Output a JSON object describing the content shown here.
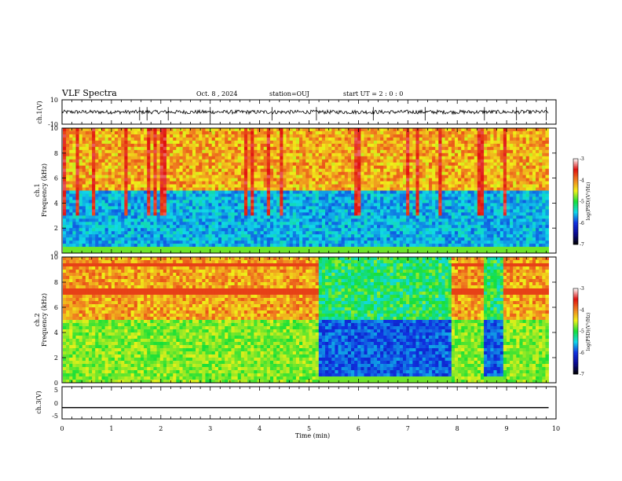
{
  "header": {
    "title": "VLF Spectra",
    "date": "Oct. 8 , 2024",
    "station": "station=OUJ",
    "start_ut": "start UT =  2 : 0 : 0"
  },
  "colors": {
    "waveform": "#000000",
    "colormap": [
      "#000000",
      "#0a0a90",
      "#1030e0",
      "#10d8e8",
      "#18e038",
      "#f0f018",
      "#f08020",
      "#e01010",
      "#ffffff"
    ]
  },
  "chart_data": [
    {
      "type": "line",
      "name": "ch1-waveform",
      "ylabel": "ch.1(V)",
      "ylim": [
        -10,
        10
      ],
      "yticks": [
        "10",
        "-10"
      ],
      "xlim": [
        0,
        10
      ],
      "baseline": 0,
      "spikes_at_min": [
        1.57,
        1.72,
        2.15,
        3.0,
        4.25,
        5.15,
        6.3,
        7.35,
        8.55,
        9.2,
        9.8
      ]
    },
    {
      "type": "heatmap",
      "name": "ch1-spectrogram",
      "ylabel": "ch.1\nFrequency (kHz)",
      "ylabel_lines": [
        "ch.1",
        "Frequency (kHz)"
      ],
      "ylim": [
        0,
        10
      ],
      "yticks": [
        "0",
        "2",
        "4",
        "6",
        "8",
        "10"
      ],
      "xlim": [
        0,
        9.85
      ],
      "colorbar": {
        "label": "log(PSD)(V²/Hz)",
        "ticks": [
          "-3",
          "-4",
          "-5",
          "-6",
          "-7"
        ],
        "range": [
          -7,
          -3
        ]
      },
      "description_levels": {
        "upper_band_kHz": [
          5,
          10
        ],
        "upper_band_level": -3.8,
        "lower_band_kHz": [
          0,
          5
        ],
        "lower_band_level": -6.3
      }
    },
    {
      "type": "heatmap",
      "name": "ch2-spectrogram",
      "ylabel": "ch.2\nFrequency (kHz)",
      "ylabel_lines": [
        "ch.2",
        "Frequency (kHz)"
      ],
      "ylim": [
        0,
        10
      ],
      "yticks": [
        "0",
        "2",
        "4",
        "6",
        "8",
        "10"
      ],
      "xlim": [
        0,
        9.85
      ],
      "colorbar": {
        "label": "log(PSD)(V²/Hz)",
        "ticks": [
          "-3",
          "-4",
          "-5",
          "-6",
          "-7"
        ],
        "range": [
          -7,
          -3
        ]
      },
      "quiet_intervals_min": [
        [
          5.2,
          7.85
        ],
        [
          8.55,
          8.95
        ]
      ]
    },
    {
      "type": "line",
      "name": "ch3-waveform",
      "ylabel": "ch.3(V)",
      "ylim": [
        -5,
        5
      ],
      "yticks": [
        "5",
        "0",
        "-5"
      ],
      "xlim": [
        0,
        10
      ],
      "constant_value": -1.5
    }
  ],
  "xaxis": {
    "label": "Time (min)",
    "ticks": [
      "0",
      "1",
      "2",
      "3",
      "4",
      "5",
      "6",
      "7",
      "8",
      "9",
      "10"
    ]
  }
}
